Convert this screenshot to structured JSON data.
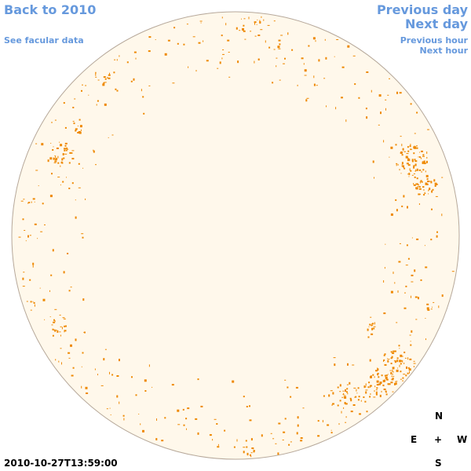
{
  "nav": {
    "back_label": "Back to 2010",
    "facular_label": "See facular data",
    "prev_day_label": "Previous day",
    "next_day_label": "Next day",
    "prev_hour_label": "Previous hour",
    "next_hour_label": "Next hour"
  },
  "compass": {
    "north": "N",
    "east": "E",
    "center": "+",
    "west": "W",
    "south": "S"
  },
  "timestamp": "2010-10-27T13:59:00",
  "colors": {
    "link": "#6699dd",
    "disk_fill": "#fff8eb",
    "disk_edge": "#b6a89a",
    "facula": "#ee8800"
  }
}
